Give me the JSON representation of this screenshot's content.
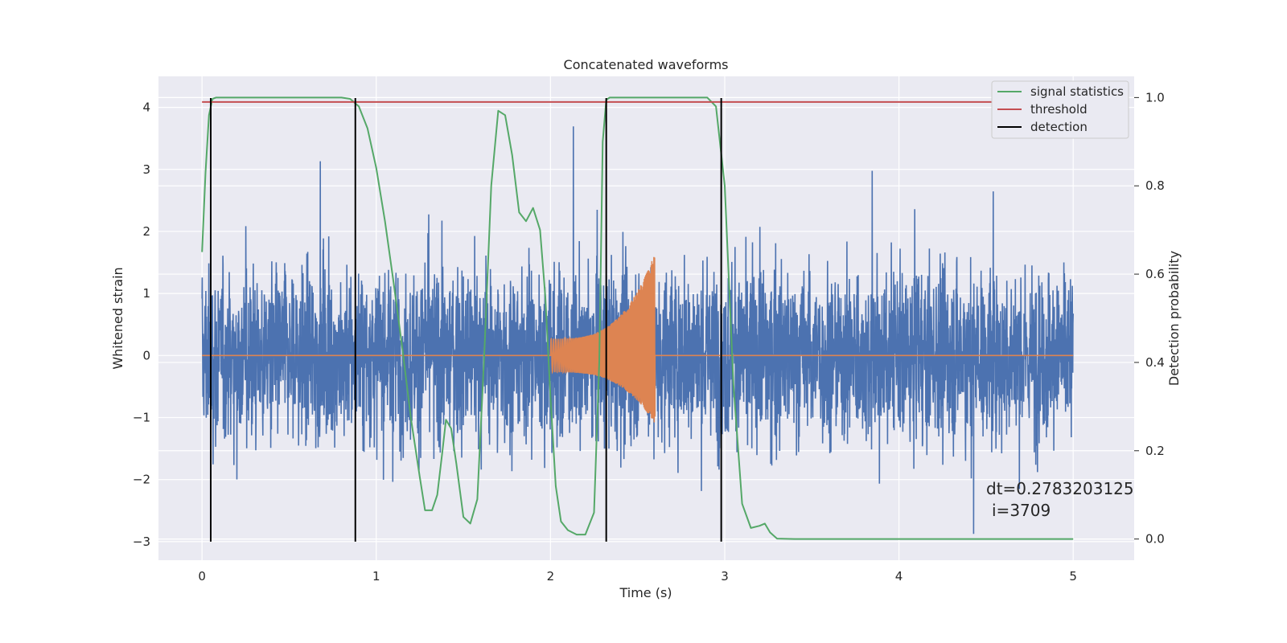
{
  "chart_data": {
    "type": "line",
    "title": "Concatenated waveforms",
    "xlabel": "Time (s)",
    "ylabel": "Whitened strain",
    "y2label": "Detection probability",
    "xlim": [
      -0.25,
      5.35
    ],
    "ylim": [
      -3.3,
      4.5
    ],
    "y2lim": [
      -0.048,
      1.048
    ],
    "xticks": [
      0,
      1,
      2,
      3,
      4,
      5
    ],
    "yticks": [
      -3,
      -2,
      -1,
      0,
      1,
      2,
      3,
      4
    ],
    "y2ticks": [
      0.0,
      0.2,
      0.4,
      0.6,
      0.8,
      1.0
    ],
    "xtick_labels": [
      "0",
      "1",
      "2",
      "3",
      "4",
      "5"
    ],
    "ytick_labels": [
      "−3",
      "−2",
      "−1",
      "0",
      "1",
      "2",
      "3",
      "4"
    ],
    "y2tick_labels": [
      "0.0",
      "0.2",
      "0.4",
      "0.6",
      "0.8",
      "1.0"
    ],
    "grid": true,
    "legend_placement": "top-right",
    "colors": {
      "strain": "#4c72b0",
      "template": "#dd8452",
      "signal_statistics": "#55a868",
      "threshold": "#c44e52",
      "detection": "#000000",
      "background": "#eaeaf2"
    },
    "series": [
      {
        "name": "signal statistics",
        "axis": "right",
        "x": [
          0.0,
          0.02,
          0.04,
          0.06,
          0.08,
          0.12,
          0.2,
          0.4,
          0.6,
          0.8,
          0.85,
          0.9,
          0.95,
          1.0,
          1.05,
          1.1,
          1.15,
          1.2,
          1.25,
          1.28,
          1.32,
          1.35,
          1.38,
          1.4,
          1.43,
          1.46,
          1.5,
          1.54,
          1.58,
          1.62,
          1.66,
          1.7,
          1.74,
          1.78,
          1.82,
          1.86,
          1.9,
          1.94,
          1.97,
          2.0,
          2.03,
          2.06,
          2.1,
          2.15,
          2.2,
          2.25,
          2.28,
          2.3,
          2.32,
          2.34,
          2.38,
          2.45,
          2.6,
          2.8,
          2.9,
          2.95,
          3.0,
          3.05,
          3.1,
          3.15,
          3.2,
          3.23,
          3.26,
          3.3,
          3.4,
          3.6,
          4.0,
          4.5,
          5.0
        ],
        "y": [
          0.65,
          0.83,
          0.96,
          0.997,
          1.0,
          1.0,
          1.0,
          1.0,
          1.0,
          1.0,
          0.997,
          0.98,
          0.93,
          0.84,
          0.72,
          0.58,
          0.43,
          0.27,
          0.14,
          0.065,
          0.065,
          0.1,
          0.2,
          0.27,
          0.25,
          0.17,
          0.05,
          0.035,
          0.09,
          0.42,
          0.8,
          0.97,
          0.96,
          0.87,
          0.74,
          0.72,
          0.75,
          0.7,
          0.55,
          0.32,
          0.12,
          0.04,
          0.02,
          0.01,
          0.01,
          0.06,
          0.4,
          0.9,
          0.995,
          1.0,
          1.0,
          1.0,
          1.0,
          1.0,
          1.0,
          0.98,
          0.8,
          0.35,
          0.08,
          0.025,
          0.03,
          0.035,
          0.015,
          0.001,
          0.0,
          0.0,
          0.0,
          0.0,
          0.0
        ]
      },
      {
        "name": "threshold",
        "axis": "right",
        "x": [
          0.0,
          5.0
        ],
        "y": [
          0.99,
          0.99
        ]
      },
      {
        "name": "detection",
        "axis": "left",
        "type": "vlines",
        "x": [
          0.05,
          0.88,
          2.32,
          2.98
        ],
        "y_from": -3.0,
        "y_to": 4.15
      },
      {
        "name": "",
        "axis": "left",
        "type": "noise",
        "x_range": [
          0.0,
          5.0
        ],
        "samples": 4096,
        "typical_range": [
          -2.6,
          2.6
        ],
        "extremes": [
          -3.05,
          4.15
        ]
      },
      {
        "name": "",
        "axis": "left",
        "type": "chirp",
        "x_range": [
          2.0,
          2.6
        ],
        "amplitude_start": 0.27,
        "amplitude_peak": 1.65,
        "amplitude_min": -1.1,
        "baseline": 0.0
      }
    ],
    "legend": [
      "signal statistics",
      "threshold",
      "detection"
    ],
    "annotations": [
      "dt=0.2783203125",
      "i=3709"
    ]
  }
}
